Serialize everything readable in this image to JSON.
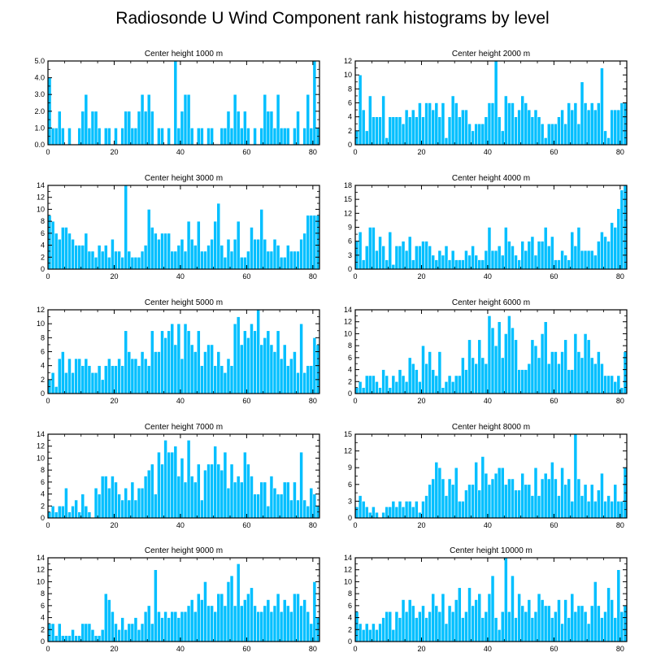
{
  "title": "Radiosonde U Wind Component rank histograms by level",
  "colors": {
    "bar": "#00bfff",
    "bar_edge": "#ffffff",
    "axis": "#000000",
    "background": "#ffffff"
  },
  "chart_data": [
    {
      "type": "bar",
      "title": "Center height 1000 m",
      "xlim": [
        0,
        82
      ],
      "ylim": [
        0,
        5
      ],
      "xticks": [
        0,
        20,
        40,
        60,
        80
      ],
      "yticks": [
        0,
        1,
        2,
        3,
        4,
        5
      ],
      "ytick_labels": [
        "0.0",
        "1.0",
        "2.0",
        "3.0",
        "4.0",
        "5.0"
      ],
      "values": [
        4,
        1,
        1,
        2,
        1,
        0,
        1,
        0,
        0,
        1,
        2,
        3,
        1,
        2,
        2,
        1,
        0,
        1,
        1,
        0,
        1,
        0,
        1,
        2,
        2,
        1,
        1,
        2,
        3,
        2,
        3,
        2,
        0,
        1,
        1,
        0,
        1,
        0,
        5,
        1,
        2,
        3,
        3,
        1,
        0,
        1,
        1,
        0,
        1,
        1,
        0,
        0,
        1,
        1,
        2,
        1,
        3,
        2,
        1,
        2,
        1,
        0,
        1,
        0,
        1,
        3,
        2,
        2,
        1,
        3,
        1,
        1,
        1,
        0,
        1,
        2,
        0,
        1,
        3,
        1,
        5,
        1
      ]
    },
    {
      "type": "bar",
      "title": "Center height 2000 m",
      "xlim": [
        0,
        82
      ],
      "ylim": [
        0,
        12
      ],
      "xticks": [
        0,
        20,
        40,
        60,
        80
      ],
      "yticks": [
        0,
        2,
        4,
        6,
        8,
        10,
        12
      ],
      "ytick_labels": [
        "0",
        "2",
        "4",
        "6",
        "8",
        "10",
        "12"
      ],
      "values": [
        2,
        10,
        5,
        2,
        7,
        4,
        4,
        4,
        7,
        1,
        4,
        4,
        4,
        4,
        3,
        5,
        4,
        5,
        4,
        6,
        4,
        6,
        6,
        5,
        6,
        4,
        6,
        1,
        4,
        7,
        6,
        4,
        5,
        5,
        3,
        2,
        3,
        3,
        3,
        4,
        6,
        6,
        12,
        4,
        2,
        7,
        6,
        6,
        4,
        5,
        7,
        6,
        5,
        4,
        5,
        4,
        3,
        1,
        3,
        3,
        3,
        4,
        5,
        3,
        6,
        5,
        6,
        3,
        9,
        6,
        5,
        6,
        5,
        6,
        11,
        2,
        1,
        5,
        5,
        5,
        6,
        6
      ]
    },
    {
      "type": "bar",
      "title": "Center height 3000 m",
      "xlim": [
        0,
        82
      ],
      "ylim": [
        0,
        14
      ],
      "xticks": [
        0,
        20,
        40,
        60,
        80
      ],
      "yticks": [
        0,
        2,
        4,
        6,
        8,
        10,
        12,
        14
      ],
      "ytick_labels": [
        "0",
        "2",
        "4",
        "6",
        "8",
        "10",
        "12",
        "14"
      ],
      "values": [
        9,
        8,
        6,
        5,
        7,
        7,
        6,
        5,
        4,
        4,
        4,
        6,
        3,
        3,
        2,
        4,
        3,
        4,
        2,
        5,
        3,
        3,
        2,
        14,
        3,
        2,
        2,
        2,
        3,
        4,
        10,
        7,
        6,
        5,
        6,
        6,
        6,
        3,
        3,
        4,
        5,
        3,
        8,
        5,
        4,
        8,
        3,
        3,
        4,
        5,
        8,
        11,
        4,
        2,
        5,
        3,
        5,
        8,
        2,
        2,
        3,
        7,
        5,
        5,
        10,
        5,
        3,
        3,
        5,
        4,
        2,
        2,
        4,
        3,
        3,
        3,
        5,
        6,
        9,
        9,
        9,
        9
      ]
    },
    {
      "type": "bar",
      "title": "Center height 4000 m",
      "xlim": [
        0,
        82
      ],
      "ylim": [
        0,
        18
      ],
      "xticks": [
        0,
        20,
        40,
        60,
        80
      ],
      "yticks": [
        0,
        3,
        6,
        9,
        12,
        15,
        18
      ],
      "ytick_labels": [
        "0",
        "3",
        "6",
        "9",
        "12",
        "15",
        "18"
      ],
      "values": [
        6,
        8,
        2,
        5,
        9,
        9,
        4,
        7,
        5,
        2,
        8,
        1,
        5,
        5,
        6,
        4,
        7,
        2,
        5,
        5,
        6,
        6,
        5,
        3,
        2,
        4,
        3,
        5,
        2,
        4,
        2,
        2,
        2,
        4,
        3,
        5,
        3,
        2,
        2,
        4,
        9,
        4,
        4,
        5,
        3,
        9,
        6,
        5,
        3,
        2,
        6,
        4,
        6,
        7,
        3,
        6,
        6,
        9,
        5,
        7,
        2,
        2,
        4,
        3,
        2,
        8,
        5,
        9,
        4,
        4,
        4,
        4,
        3,
        6,
        8,
        7,
        6,
        10,
        9,
        13,
        17,
        18
      ]
    },
    {
      "type": "bar",
      "title": "Center height 5000 m",
      "xlim": [
        0,
        82
      ],
      "ylim": [
        0,
        12
      ],
      "xticks": [
        0,
        20,
        40,
        60,
        80
      ],
      "yticks": [
        0,
        2,
        4,
        6,
        8,
        10,
        12
      ],
      "ytick_labels": [
        "0",
        "2",
        "4",
        "6",
        "8",
        "10",
        "12"
      ],
      "values": [
        2,
        3,
        1,
        5,
        6,
        3,
        5,
        3,
        5,
        5,
        4,
        5,
        4,
        3,
        3,
        4,
        2,
        4,
        5,
        4,
        4,
        5,
        4,
        9,
        6,
        5,
        5,
        4,
        6,
        5,
        4,
        9,
        6,
        6,
        9,
        8,
        9,
        10,
        7,
        10,
        5,
        10,
        9,
        7,
        6,
        9,
        4,
        6,
        7,
        7,
        4,
        6,
        4,
        3,
        5,
        4,
        10,
        11,
        7,
        9,
        8,
        10,
        9,
        12,
        7,
        8,
        9,
        7,
        6,
        9,
        5,
        7,
        4,
        5,
        6,
        3,
        10,
        3,
        4,
        4,
        8,
        7
      ]
    },
    {
      "type": "bar",
      "title": "Center height 6000 m",
      "xlim": [
        0,
        82
      ],
      "ylim": [
        0,
        14
      ],
      "xticks": [
        0,
        20,
        40,
        60,
        80
      ],
      "yticks": [
        0,
        2,
        4,
        6,
        8,
        10,
        12,
        14
      ],
      "ytick_labels": [
        "0",
        "2",
        "4",
        "6",
        "8",
        "10",
        "12",
        "14"
      ],
      "values": [
        1,
        2,
        1,
        3,
        3,
        3,
        2,
        1,
        4,
        3,
        1,
        3,
        2,
        4,
        3,
        2,
        6,
        5,
        4,
        2,
        8,
        5,
        7,
        4,
        3,
        7,
        1,
        2,
        3,
        2,
        3,
        3,
        6,
        4,
        9,
        6,
        5,
        9,
        6,
        5,
        13,
        11,
        8,
        12,
        6,
        10,
        13,
        11,
        9,
        4,
        4,
        4,
        5,
        9,
        8,
        6,
        10,
        12,
        5,
        7,
        7,
        5,
        7,
        9,
        4,
        4,
        10,
        7,
        6,
        10,
        9,
        6,
        5,
        7,
        5,
        3,
        3,
        3,
        2,
        3,
        1,
        7
      ]
    },
    {
      "type": "bar",
      "title": "Center height 7000 m",
      "xlim": [
        0,
        82
      ],
      "ylim": [
        0,
        14
      ],
      "xticks": [
        0,
        20,
        40,
        60,
        80
      ],
      "yticks": [
        0,
        2,
        4,
        6,
        8,
        10,
        12,
        14
      ],
      "ytick_labels": [
        "0",
        "2",
        "4",
        "6",
        "8",
        "10",
        "12",
        "14"
      ],
      "values": [
        1,
        2,
        1,
        2,
        2,
        5,
        1,
        2,
        3,
        1,
        4,
        2,
        1,
        0,
        5,
        4,
        7,
        7,
        5,
        7,
        6,
        4,
        3,
        5,
        3,
        6,
        3,
        5,
        5,
        7,
        8,
        9,
        4,
        11,
        9,
        13,
        11,
        11,
        12,
        7,
        10,
        6,
        13,
        7,
        6,
        9,
        3,
        8,
        9,
        9,
        12,
        9,
        8,
        11,
        5,
        9,
        6,
        7,
        6,
        11,
        9,
        7,
        4,
        4,
        6,
        6,
        2,
        7,
        5,
        4,
        4,
        6,
        6,
        3,
        6,
        3,
        11,
        3,
        2,
        5,
        4,
        2
      ]
    },
    {
      "type": "bar",
      "title": "Center height 8000 m",
      "xlim": [
        0,
        82
      ],
      "ylim": [
        0,
        15
      ],
      "xticks": [
        0,
        20,
        40,
        60,
        80
      ],
      "yticks": [
        0,
        3,
        6,
        9,
        12,
        15
      ],
      "ytick_labels": [
        "0",
        "3",
        "6",
        "9",
        "12",
        "15"
      ],
      "values": [
        2,
        4,
        3,
        2,
        1,
        2,
        1,
        0,
        1,
        2,
        2,
        3,
        2,
        3,
        2,
        3,
        3,
        2,
        3,
        1,
        3,
        4,
        6,
        7,
        10,
        9,
        7,
        4,
        7,
        6,
        9,
        3,
        3,
        5,
        6,
        6,
        10,
        5,
        11,
        8,
        6,
        7,
        8,
        9,
        9,
        6,
        7,
        7,
        5,
        5,
        8,
        6,
        6,
        4,
        9,
        4,
        7,
        8,
        7,
        10,
        7,
        4,
        9,
        6,
        7,
        3,
        15,
        7,
        4,
        6,
        3,
        6,
        3,
        5,
        8,
        3,
        4,
        3,
        6,
        3,
        3,
        9
      ]
    },
    {
      "type": "bar",
      "title": "Center height 9000 m",
      "xlim": [
        0,
        82
      ],
      "ylim": [
        0,
        14
      ],
      "xticks": [
        0,
        20,
        40,
        60,
        80
      ],
      "yticks": [
        0,
        2,
        4,
        6,
        8,
        10,
        12,
        14
      ],
      "ytick_labels": [
        "0",
        "2",
        "4",
        "6",
        "8",
        "10",
        "12",
        "14"
      ],
      "values": [
        3,
        3,
        1,
        3,
        1,
        1,
        1,
        2,
        1,
        1,
        3,
        3,
        3,
        2,
        1,
        1,
        2,
        8,
        7,
        5,
        3,
        2,
        4,
        2,
        3,
        3,
        4,
        2,
        3,
        5,
        6,
        3,
        12,
        5,
        4,
        5,
        4,
        5,
        5,
        4,
        5,
        5,
        6,
        7,
        5,
        8,
        7,
        10,
        6,
        6,
        5,
        8,
        8,
        6,
        10,
        11,
        6,
        13,
        6,
        7,
        8,
        9,
        6,
        5,
        5,
        6,
        7,
        5,
        6,
        8,
        5,
        7,
        6,
        5,
        8,
        8,
        6,
        7,
        5,
        3,
        10,
        4
      ]
    },
    {
      "type": "bar",
      "title": "Center height 10000 m",
      "xlim": [
        0,
        82
      ],
      "ylim": [
        0,
        14
      ],
      "xticks": [
        0,
        20,
        40,
        60,
        80
      ],
      "yticks": [
        0,
        2,
        4,
        6,
        8,
        10,
        12,
        14
      ],
      "ytick_labels": [
        "0",
        "2",
        "4",
        "6",
        "8",
        "10",
        "12",
        "14"
      ],
      "values": [
        5,
        3,
        2,
        3,
        2,
        3,
        2,
        3,
        4,
        5,
        5,
        2,
        5,
        4,
        7,
        5,
        7,
        6,
        4,
        5,
        6,
        4,
        5,
        8,
        6,
        5,
        8,
        3,
        6,
        5,
        7,
        9,
        4,
        5,
        9,
        6,
        7,
        8,
        4,
        5,
        8,
        11,
        4,
        2,
        5,
        14,
        5,
        11,
        4,
        8,
        6,
        5,
        7,
        4,
        5,
        8,
        7,
        6,
        6,
        4,
        5,
        7,
        3,
        7,
        4,
        8,
        5,
        6,
        6,
        5,
        3,
        6,
        10,
        6,
        4,
        5,
        9,
        7,
        4,
        12,
        5,
        6
      ]
    }
  ]
}
